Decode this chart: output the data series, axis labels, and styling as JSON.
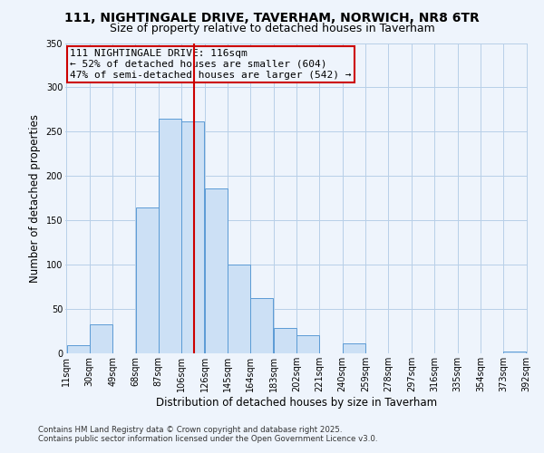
{
  "title": "111, NIGHTINGALE DRIVE, TAVERHAM, NORWICH, NR8 6TR",
  "subtitle": "Size of property relative to detached houses in Taverham",
  "xlabel": "Distribution of detached houses by size in Taverham",
  "ylabel": "Number of detached properties",
  "bar_edges": [
    11,
    30,
    49,
    68,
    87,
    106,
    125,
    144,
    163,
    182,
    201,
    220,
    239,
    258,
    277,
    296,
    315,
    334,
    353,
    372,
    391
  ],
  "bar_heights": [
    9,
    33,
    0,
    165,
    265,
    262,
    186,
    100,
    62,
    29,
    20,
    0,
    11,
    0,
    0,
    0,
    0,
    0,
    0,
    2
  ],
  "tick_labels": [
    "11sqm",
    "30sqm",
    "49sqm",
    "68sqm",
    "87sqm",
    "106sqm",
    "126sqm",
    "145sqm",
    "164sqm",
    "183sqm",
    "202sqm",
    "221sqm",
    "240sqm",
    "259sqm",
    "278sqm",
    "297sqm",
    "316sqm",
    "335sqm",
    "354sqm",
    "373sqm",
    "392sqm"
  ],
  "bar_color": "#cce0f5",
  "bar_edge_color": "#5b9bd5",
  "bg_color": "#eef4fc",
  "grid_color": "#b8cfe8",
  "vline_x": 116,
  "vline_color": "#cc0000",
  "annotation_line1": "111 NIGHTINGALE DRIVE: 116sqm",
  "annotation_line2": "← 52% of detached houses are smaller (604)",
  "annotation_line3": "47% of semi-detached houses are larger (542) →",
  "annotation_box_color": "#cc0000",
  "ylim": [
    0,
    350
  ],
  "yticks": [
    0,
    50,
    100,
    150,
    200,
    250,
    300,
    350
  ],
  "footer1": "Contains HM Land Registry data © Crown copyright and database right 2025.",
  "footer2": "Contains public sector information licensed under the Open Government Licence v3.0.",
  "title_fontsize": 10,
  "subtitle_fontsize": 9,
  "axis_label_fontsize": 8.5,
  "tick_fontsize": 7,
  "annotation_fontsize": 8
}
